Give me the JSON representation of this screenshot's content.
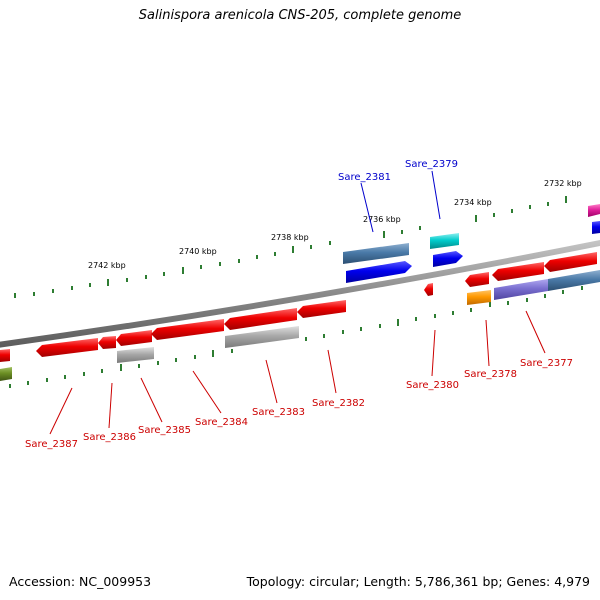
{
  "title": "Salinispora arenicola CNS-205, complete genome",
  "footer": {
    "accession": "Accession: NC_009953",
    "summary": "Topology: circular; Length: 5,786,361 bp; Genes: 4,979"
  },
  "scale_ticks": [
    "2732 kbp",
    "2734 kbp",
    "2736 kbp",
    "2738 kbp",
    "2740 kbp",
    "2742 kbp"
  ],
  "gene_labels_forward": [
    "Sare_2381",
    "Sare_2379"
  ],
  "gene_labels_reverse": [
    "Sare_2387",
    "Sare_2386",
    "Sare_2385",
    "Sare_2384",
    "Sare_2383",
    "Sare_2382",
    "Sare_2380",
    "Sare_2378",
    "Sare_2377"
  ],
  "colors": {
    "forward_label": "#0000cc",
    "reverse_label": "#cc0000",
    "backbone": "#808080",
    "tick": "#2e7d32",
    "gene_red": "#ee0000",
    "gene_blue": "#0000ee",
    "gene_steel": "#4a7aa8",
    "gene_cyan": "#00cccc",
    "gene_gray": "#a8a8a8",
    "gene_orange": "#ff9900",
    "gene_purple": "#7a6fd0",
    "gene_olive": "#6b8e23",
    "gene_magenta": "#e0209a"
  }
}
